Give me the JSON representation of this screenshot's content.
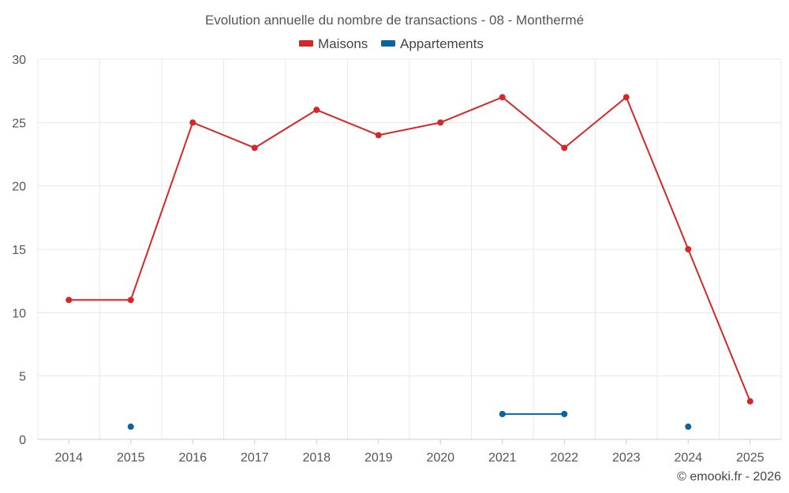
{
  "chart_data": {
    "type": "line",
    "title": "Evolution annuelle du nombre de transactions - 08 - Monthermé",
    "xlabel": "",
    "ylabel": "",
    "ylim": [
      0,
      30
    ],
    "yticks": [
      0,
      5,
      10,
      15,
      20,
      25,
      30
    ],
    "grid": true,
    "legend_position": "top-center",
    "categories": [
      "2014",
      "2015",
      "2016",
      "2017",
      "2018",
      "2019",
      "2020",
      "2021",
      "2022",
      "2023",
      "2024",
      "2025"
    ],
    "series": [
      {
        "name": "Maisons",
        "color": "#d62728",
        "values": [
          11,
          11,
          25,
          23,
          26,
          24,
          25,
          27,
          23,
          27,
          15,
          3
        ]
      },
      {
        "name": "Appartements",
        "color": "#0a64a0",
        "values": [
          null,
          1,
          null,
          null,
          null,
          null,
          null,
          2,
          2,
          null,
          1,
          null
        ]
      }
    ]
  },
  "credit": "© emooki.fr - 2026"
}
